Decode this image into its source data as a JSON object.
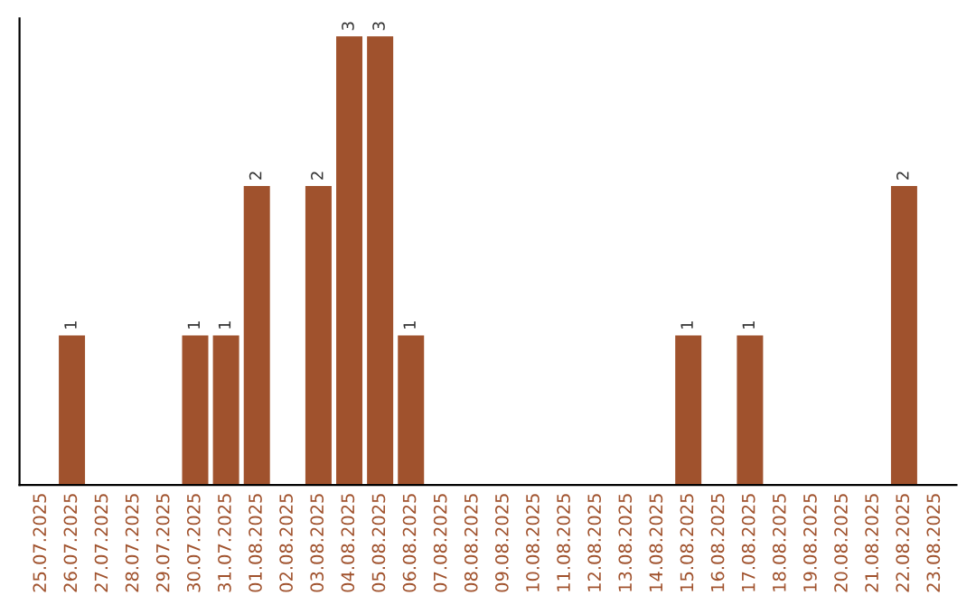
{
  "chart_data": {
    "type": "bar",
    "categories": [
      "25.07.2025",
      "26.07.2025",
      "27.07.2025",
      "28.07.2025",
      "29.07.2025",
      "30.07.2025",
      "31.07.2025",
      "01.08.2025",
      "02.08.2025",
      "03.08.2025",
      "04.08.2025",
      "05.08.2025",
      "06.08.2025",
      "07.08.2025",
      "08.08.2025",
      "09.08.2025",
      "10.08.2025",
      "11.08.2025",
      "12.08.2025",
      "13.08.2025",
      "14.08.2025",
      "15.08.2025",
      "16.08.2025",
      "17.08.2025",
      "18.08.2025",
      "19.08.2025",
      "20.08.2025",
      "21.08.2025",
      "22.08.2025",
      "23.08.2025"
    ],
    "values": [
      0,
      1,
      0,
      0,
      0,
      1,
      1,
      2,
      0,
      2,
      3,
      3,
      1,
      0,
      0,
      0,
      0,
      0,
      0,
      0,
      0,
      1,
      0,
      1,
      0,
      0,
      0,
      0,
      2,
      0
    ],
    "color": "#a0522d",
    "value_labels": [
      null,
      "1",
      null,
      null,
      null,
      "1",
      "1",
      "2",
      null,
      "2",
      "3",
      "3",
      "1",
      null,
      null,
      null,
      null,
      null,
      null,
      null,
      null,
      "1",
      null,
      "1",
      null,
      null,
      null,
      null,
      "2",
      null
    ],
    "tick_labels": "x",
    "grid": false,
    "legend": false
  }
}
